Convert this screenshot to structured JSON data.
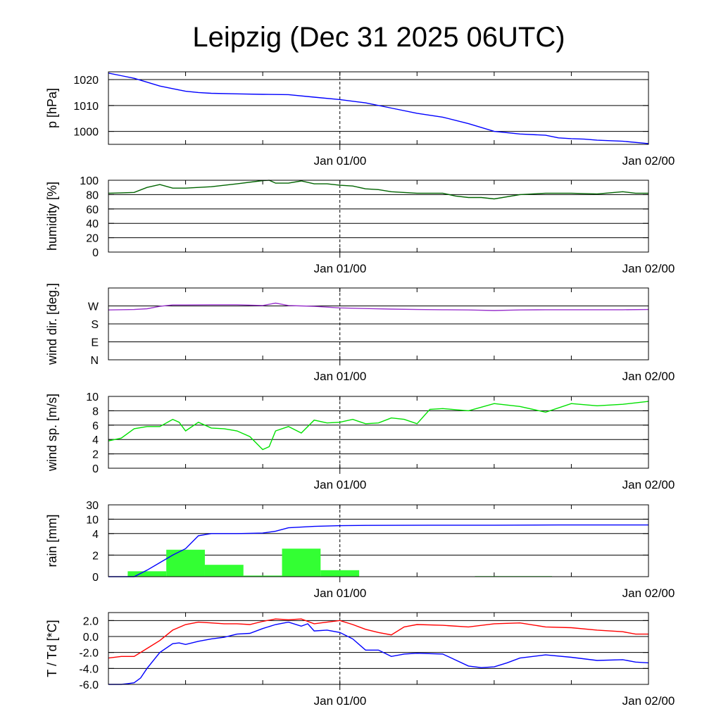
{
  "title": "Leipzig (Dec 31 2025 06UTC)",
  "x_tick_labels": [
    "Jan 01/00",
    "Jan 02/00"
  ],
  "chart_data": [
    {
      "type": "line",
      "panel": "pressure",
      "ylabel": "p [hPa]",
      "ylim": [
        995,
        1023
      ],
      "yticks": [
        1000,
        1010,
        1020
      ],
      "ytick_labels": [
        "1000",
        "1010",
        "1020"
      ],
      "x_unit": "hours since Dec 31 06UTC",
      "xlim": [
        0,
        42
      ],
      "series": [
        {
          "name": "pressure",
          "color": "#0000ff",
          "x": [
            0,
            1,
            2,
            3,
            4,
            5,
            6,
            7,
            8,
            10,
            12,
            14,
            16,
            18,
            20,
            22,
            24,
            26,
            28,
            30,
            32,
            34,
            35,
            36,
            37,
            38,
            40,
            42
          ],
          "y": [
            1022.5,
            1021.5,
            1020.5,
            1019,
            1017.5,
            1016.5,
            1015.5,
            1015,
            1014.7,
            1014.5,
            1014.3,
            1014.2,
            1013.2,
            1012.3,
            1011,
            1009,
            1007,
            1005.5,
            1003,
            1000,
            999,
            998.5,
            997.5,
            997.2,
            997,
            996.6,
            996.2,
            995.3
          ]
        }
      ]
    },
    {
      "type": "line",
      "panel": "humidity",
      "ylabel": "humidity [%]",
      "ylim": [
        0,
        100
      ],
      "yticks": [
        0,
        20,
        40,
        60,
        80,
        100
      ],
      "ytick_labels": [
        "0",
        "20",
        "40",
        "60",
        "80",
        "100"
      ],
      "xlim": [
        0,
        42
      ],
      "series": [
        {
          "name": "humidity",
          "color": "#006400",
          "x": [
            0,
            1,
            2,
            3,
            4,
            5,
            6,
            7,
            8,
            10,
            12,
            12.5,
            13,
            14,
            15,
            16,
            17,
            18,
            19,
            20,
            21,
            22,
            24,
            26,
            27,
            28,
            29,
            30,
            32,
            34,
            36,
            38,
            40,
            41,
            42
          ],
          "y": [
            82,
            82.5,
            83,
            90,
            94,
            89,
            89,
            90,
            91,
            95,
            99.5,
            100,
            96,
            96,
            99,
            95,
            95,
            93,
            92,
            88,
            87,
            84,
            82,
            82,
            78,
            76,
            76,
            74,
            80,
            82,
            82,
            81,
            84,
            82,
            82
          ]
        }
      ]
    },
    {
      "type": "line",
      "panel": "wind_direction",
      "ylabel": "wind dir. [deg.]",
      "ylim": [
        0,
        360
      ],
      "yticks": [
        0,
        90,
        180,
        270
      ],
      "ytick_labels": [
        "N",
        "E",
        "S",
        "W"
      ],
      "xlim": [
        0,
        42
      ],
      "series": [
        {
          "name": "wind direction",
          "color": "#9933cc",
          "x": [
            0,
            2,
            3,
            4,
            5,
            6,
            8,
            10,
            12,
            13,
            14,
            15,
            16,
            18,
            20,
            22,
            24,
            26,
            28,
            30,
            32,
            34,
            36,
            38,
            40,
            42
          ],
          "y": [
            250,
            252,
            256,
            268,
            275,
            275,
            276,
            276,
            272,
            284,
            272,
            270,
            268,
            260,
            257,
            254,
            252,
            251,
            250,
            247,
            250,
            251,
            251,
            251,
            251,
            252
          ]
        }
      ]
    },
    {
      "type": "line",
      "panel": "wind_speed",
      "ylabel": "wind sp. [m/s]",
      "ylim": [
        0,
        10
      ],
      "yticks": [
        0,
        2,
        4,
        6,
        8,
        10
      ],
      "ytick_labels": [
        "0",
        "2",
        "4",
        "6",
        "8",
        "10"
      ],
      "xlim": [
        0,
        42
      ],
      "series": [
        {
          "name": "wind speed",
          "color": "#00e000",
          "x": [
            0,
            1,
            2,
            3,
            4,
            5,
            5.5,
            6,
            7,
            8,
            9,
            10,
            11,
            12,
            12.5,
            13,
            14,
            15,
            16,
            17,
            18,
            19,
            20,
            21,
            22,
            23,
            24,
            25,
            26,
            28,
            30,
            32,
            34,
            36,
            38,
            40,
            42
          ],
          "y": [
            3.8,
            4.2,
            5.5,
            5.8,
            5.8,
            6.8,
            6.4,
            5.2,
            6.4,
            5.6,
            5.5,
            5.2,
            4.4,
            2.6,
            3.0,
            5.2,
            5.8,
            4.9,
            6.7,
            6.3,
            6.4,
            6.8,
            6.2,
            6.3,
            7.0,
            6.8,
            6.2,
            8.2,
            8.3,
            8.0,
            9.0,
            8.6,
            7.8,
            9.0,
            8.7,
            8.9,
            9.3
          ]
        }
      ]
    },
    {
      "type": "line",
      "panel": "rain",
      "ylabel": "rain [mm]",
      "ylim": [
        0,
        30
      ],
      "yticks": [
        0,
        2,
        4,
        10,
        30
      ],
      "ytick_labels": [
        "0",
        "2",
        "4",
        "10",
        "30"
      ],
      "xlim": [
        0,
        42
      ],
      "bars": {
        "name": "rain per 3h",
        "color": "#33ff33",
        "x_start": [
          1.5,
          4.5,
          7.5,
          10.5,
          13.5,
          16.5,
          19.5,
          22.5,
          25.5,
          28.5,
          31.5,
          34.5,
          37.5
        ],
        "values": [
          0.5,
          2.5,
          1.1,
          0.1,
          2.6,
          0.6,
          0,
          0,
          0,
          0.05,
          0.05,
          0,
          0
        ]
      },
      "series": [
        {
          "name": "accumulated rain",
          "color": "#0000ff",
          "x": [
            0,
            2,
            3,
            4,
            5,
            6,
            7,
            8,
            10,
            12,
            13,
            14,
            16,
            18,
            20,
            25,
            30,
            35,
            42
          ],
          "y": [
            0,
            0,
            0.6,
            1.3,
            2.0,
            2.6,
            3.8,
            4.0,
            4.0,
            4.2,
            5.0,
            6.4,
            7.0,
            7.3,
            7.4,
            7.5,
            7.5,
            7.6,
            7.6
          ]
        }
      ]
    },
    {
      "type": "line",
      "panel": "temperature",
      "ylabel": "T / Td [*C]",
      "ylim": [
        -6,
        3
      ],
      "yticks": [
        -6,
        -4,
        -2,
        0,
        2
      ],
      "ytick_labels": [
        "-6.0",
        "-4.0",
        "-2.0",
        "0.0",
        "2.0"
      ],
      "xlim": [
        0,
        42
      ],
      "series": [
        {
          "name": "T",
          "color": "#ff0000",
          "x": [
            0,
            1,
            1.5,
            2,
            3,
            4,
            5,
            6,
            7,
            8,
            9,
            10,
            11,
            12,
            13,
            14,
            15,
            16,
            17,
            18,
            19,
            20,
            21,
            22,
            23,
            24,
            26,
            28,
            30,
            32,
            34,
            36,
            38,
            40,
            41,
            42
          ],
          "y": [
            -2.7,
            -2.5,
            -2.5,
            -2.5,
            -1.5,
            -0.5,
            0.8,
            1.5,
            1.8,
            1.7,
            1.6,
            1.6,
            1.5,
            1.9,
            2.2,
            2.1,
            2.2,
            1.6,
            1.8,
            2.0,
            1.5,
            0.9,
            0.5,
            0.2,
            1.2,
            1.5,
            1.4,
            1.2,
            1.6,
            1.7,
            1.2,
            1.1,
            0.8,
            0.6,
            0.3,
            0.3
          ]
        },
        {
          "name": "Td",
          "color": "#0000ff",
          "x": [
            0,
            1,
            1.5,
            2,
            2.5,
            3,
            4,
            5,
            5.5,
            6,
            7,
            8,
            9,
            10,
            11,
            12,
            13,
            14,
            15,
            15.5,
            16,
            17,
            18,
            19,
            20,
            21,
            22,
            23,
            24,
            26,
            28,
            29,
            30,
            31,
            32,
            34,
            36,
            38,
            40,
            41,
            42
          ],
          "y": [
            -6.0,
            -6.0,
            -5.9,
            -5.8,
            -5.2,
            -4.0,
            -2.0,
            -0.9,
            -0.8,
            -1.0,
            -0.6,
            -0.3,
            -0.1,
            0.3,
            0.4,
            1.0,
            1.5,
            1.8,
            1.3,
            1.6,
            0.7,
            0.8,
            0.5,
            -0.3,
            -1.7,
            -1.7,
            -2.5,
            -2.2,
            -2.1,
            -2.2,
            -3.7,
            -3.9,
            -3.8,
            -3.3,
            -2.7,
            -2.3,
            -2.6,
            -3.0,
            -2.9,
            -3.2,
            -3.3
          ]
        }
      ]
    }
  ]
}
